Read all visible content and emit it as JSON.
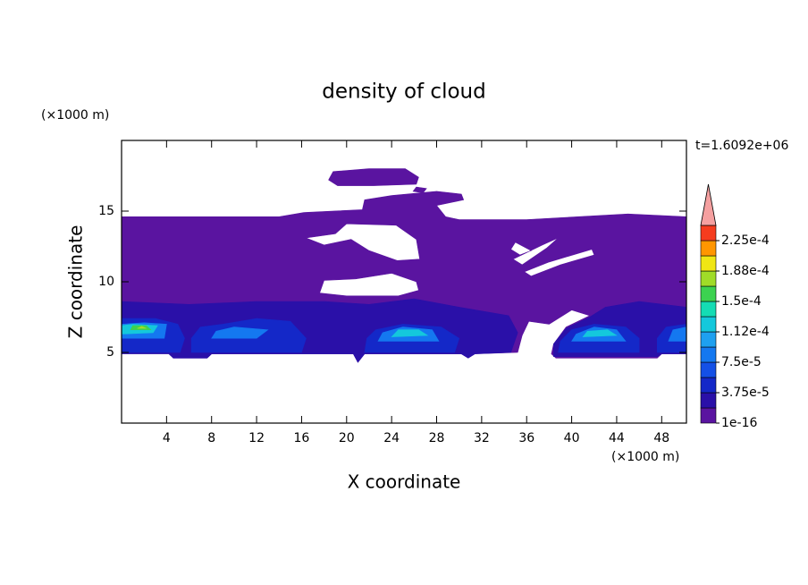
{
  "chart_data": {
    "type": "contour",
    "title": "density of cloud",
    "x_label": "X coordinate",
    "y_label": "Z coordinate",
    "x_unit": "(×1000 m)",
    "y_unit": "(×1000 m)",
    "annotation": "t=1.6092e+06",
    "xlim": [
      0,
      50.2
    ],
    "ylim": [
      0,
      20
    ],
    "xticks": [
      4,
      8,
      12,
      16,
      20,
      24,
      28,
      32,
      36,
      40,
      44,
      48
    ],
    "yticks": [
      5,
      10,
      15
    ],
    "colorbar": {
      "levels": [
        1e-16,
        1.875e-05,
        3.75e-05,
        5.625e-05,
        7.5e-05,
        9.375e-05,
        0.0001125,
        0.00013125,
        0.00015,
        0.00016875,
        0.0001875,
        0.00020625,
        0.000225
      ],
      "colors": [
        "#5a14a0",
        "#2a10a8",
        "#1428c8",
        "#1450e6",
        "#1478f0",
        "#1ea0f0",
        "#14c8dc",
        "#14dcb4",
        "#3cd250",
        "#a0dc28",
        "#f0e614",
        "#ff9600",
        "#f53c1e"
      ],
      "extend_color": "#f5a0a0",
      "ticks": [
        {
          "value": 1e-16,
          "label": "1e-16"
        },
        {
          "value": 3.75e-05,
          "label": "3.75e-5"
        },
        {
          "value": 7.5e-05,
          "label": "7.5e-5"
        },
        {
          "value": 0.0001125,
          "label": "1.12e-4"
        },
        {
          "value": 0.00015,
          "label": "1.5e-4"
        },
        {
          "value": 0.0001875,
          "label": "1.88e-4"
        },
        {
          "value": 0.000225,
          "label": "2.25e-4"
        }
      ]
    },
    "regions": [
      {
        "level": 1e-16,
        "rings": [
          [
            [
              0,
              5.0
            ],
            [
              4.2,
              5.0
            ],
            [
              4.6,
              4.6
            ],
            [
              7.6,
              4.6
            ],
            [
              8,
              4.9
            ],
            [
              20.6,
              4.9
            ],
            [
              21,
              4.3
            ],
            [
              21.6,
              4.9
            ],
            [
              30.2,
              4.9
            ],
            [
              30.8,
              4.6
            ],
            [
              31.4,
              4.9
            ],
            [
              35.2,
              5.0
            ],
            [
              35.6,
              6.2
            ],
            [
              36.2,
              7.2
            ],
            [
              38,
              7.0
            ],
            [
              40,
              8.0
            ],
            [
              41.6,
              7.6
            ],
            [
              39.5,
              6.8
            ],
            [
              38.4,
              5.6
            ],
            [
              38.2,
              4.9
            ],
            [
              38.6,
              4.6
            ],
            [
              47.6,
              4.6
            ],
            [
              48,
              4.9
            ],
            [
              50.2,
              4.9
            ],
            [
              50.2,
              14.6
            ],
            [
              45,
              14.8
            ],
            [
              36,
              14.4
            ],
            [
              30,
              14.4
            ],
            [
              28.8,
              14.6
            ],
            [
              28,
              15.4
            ],
            [
              30.4,
              15.8
            ],
            [
              30.2,
              16.2
            ],
            [
              28,
              16.4
            ],
            [
              24,
              16.1
            ],
            [
              21.6,
              15.8
            ],
            [
              21.4,
              15.1
            ],
            [
              16.2,
              14.9
            ],
            [
              14,
              14.6
            ],
            [
              0,
              14.6
            ]
          ],
          [
            [
              16.4,
              13.1
            ],
            [
              19,
              13.4
            ],
            [
              20,
              14.1
            ],
            [
              24.4,
              14.0
            ],
            [
              26.2,
              13.0
            ],
            [
              26.5,
              11.6
            ],
            [
              24.5,
              11.5
            ],
            [
              22,
              12.2
            ],
            [
              20.4,
              13.0
            ],
            [
              18,
              12.6
            ]
          ],
          [
            [
              17.6,
              9.2
            ],
            [
              18,
              10.1
            ],
            [
              20.8,
              10.2
            ],
            [
              24,
              10.6
            ],
            [
              26.2,
              10.0
            ],
            [
              26.4,
              9.4
            ],
            [
              24.6,
              9.0
            ],
            [
              20,
              9.0
            ]
          ],
          [
            [
              34.8,
              11.6
            ],
            [
              37.4,
              12.6
            ],
            [
              38.8,
              13.1
            ],
            [
              37.8,
              12.4
            ],
            [
              35.6,
              11.2
            ]
          ],
          [
            [
              35.8,
              10.7
            ],
            [
              38,
              11.4
            ],
            [
              41.8,
              12.3
            ],
            [
              42,
              11.9
            ],
            [
              39,
              11.2
            ],
            [
              36.4,
              10.4
            ]
          ],
          [
            [
              34.6,
              12.3
            ],
            [
              35,
              12.8
            ],
            [
              36.4,
              12.2
            ],
            [
              35.4,
              11.9
            ]
          ]
        ]
      },
      {
        "level": 1e-16,
        "rings": [
          [
            [
              18.4,
              17.2
            ],
            [
              18.8,
              17.8
            ],
            [
              22,
              18.0
            ],
            [
              25.2,
              18.0
            ],
            [
              26.4,
              17.4
            ],
            [
              26.2,
              16.9
            ],
            [
              22.4,
              16.8
            ],
            [
              19.2,
              16.8
            ]
          ]
        ]
      },
      {
        "level": 1e-16,
        "rings": [
          [
            [
              25.9,
              16.4
            ],
            [
              26.2,
              16.7
            ],
            [
              27.1,
              16.6
            ],
            [
              26.8,
              16.3
            ]
          ]
        ]
      },
      {
        "level": 1.875e-05,
        "rings": [
          [
            [
              0,
              4.9
            ],
            [
              4.2,
              4.9
            ],
            [
              4.6,
              4.6
            ],
            [
              7.6,
              4.6
            ],
            [
              8,
              4.9
            ],
            [
              20.6,
              4.9
            ],
            [
              21,
              4.3
            ],
            [
              21.6,
              4.9
            ],
            [
              30.2,
              4.9
            ],
            [
              30.8,
              4.6
            ],
            [
              31.4,
              4.9
            ],
            [
              34.6,
              5.0
            ],
            [
              35.2,
              6.4
            ],
            [
              34.4,
              7.6
            ],
            [
              30,
              8.2
            ],
            [
              26,
              8.8
            ],
            [
              22,
              8.4
            ],
            [
              18,
              8.6
            ],
            [
              12,
              8.6
            ],
            [
              6,
              8.4
            ],
            [
              0,
              8.6
            ]
          ]
        ]
      },
      {
        "level": 1.875e-05,
        "rings": [
          [
            [
              38.4,
              4.7
            ],
            [
              47.6,
              4.7
            ],
            [
              48,
              4.9
            ],
            [
              50.2,
              4.9
            ],
            [
              50.2,
              8.2
            ],
            [
              46,
              8.6
            ],
            [
              43,
              8.2
            ],
            [
              41.6,
              7.5
            ],
            [
              39.5,
              6.7
            ],
            [
              38.4,
              5.6
            ]
          ]
        ]
      },
      {
        "level": 3.75e-05,
        "rings": [
          [
            [
              0,
              5.0
            ],
            [
              5.2,
              5.0
            ],
            [
              5.6,
              6.0
            ],
            [
              5,
              7.0
            ],
            [
              3,
              7.4
            ],
            [
              0,
              7.4
            ]
          ]
        ]
      },
      {
        "level": 3.75e-05,
        "rings": [
          [
            [
              6.2,
              5.0
            ],
            [
              16,
              5.0
            ],
            [
              16.4,
              6.0
            ],
            [
              15,
              7.2
            ],
            [
              12,
              7.4
            ],
            [
              9,
              7.0
            ],
            [
              7,
              6.8
            ],
            [
              6.2,
              6.0
            ]
          ]
        ]
      },
      {
        "level": 3.75e-05,
        "rings": [
          [
            [
              21.6,
              5.0
            ],
            [
              29.6,
              5.0
            ],
            [
              30,
              6.0
            ],
            [
              28.4,
              6.8
            ],
            [
              25,
              7.0
            ],
            [
              22.6,
              6.6
            ],
            [
              21.8,
              6.0
            ]
          ]
        ]
      },
      {
        "level": 3.75e-05,
        "rings": [
          [
            [
              38.8,
              5.0
            ],
            [
              46,
              5.0
            ],
            [
              46,
              6.0
            ],
            [
              44.8,
              6.8
            ],
            [
              42,
              7.0
            ],
            [
              40,
              6.6
            ],
            [
              39,
              5.8
            ]
          ]
        ]
      },
      {
        "level": 3.75e-05,
        "rings": [
          [
            [
              47.6,
              5.0
            ],
            [
              50.2,
              5.0
            ],
            [
              50.2,
              7.0
            ],
            [
              48.4,
              6.8
            ],
            [
              47.6,
              6.0
            ]
          ]
        ]
      },
      {
        "level": 7.5e-05,
        "rings": [
          [
            [
              0,
              6.0
            ],
            [
              3.8,
              6.0
            ],
            [
              4,
              7.0
            ],
            [
              2,
              7.1
            ],
            [
              0,
              7.0
            ]
          ]
        ]
      },
      {
        "level": 7.5e-05,
        "rings": [
          [
            [
              22.8,
              5.8
            ],
            [
              28.2,
              5.8
            ],
            [
              27.6,
              6.6
            ],
            [
              25,
              6.8
            ],
            [
              23.2,
              6.4
            ]
          ]
        ]
      },
      {
        "level": 7.5e-05,
        "rings": [
          [
            [
              40,
              5.8
            ],
            [
              44.8,
              5.8
            ],
            [
              44,
              6.6
            ],
            [
              42,
              6.8
            ],
            [
              40.4,
              6.3
            ]
          ]
        ]
      },
      {
        "level": 7.5e-05,
        "rings": [
          [
            [
              8,
              6.0
            ],
            [
              12,
              6.0
            ],
            [
              13,
              6.6
            ],
            [
              10,
              6.8
            ],
            [
              8.4,
              6.5
            ]
          ]
        ]
      },
      {
        "level": 7.5e-05,
        "rings": [
          [
            [
              48.6,
              5.8
            ],
            [
              50.2,
              5.8
            ],
            [
              50.2,
              6.8
            ],
            [
              49,
              6.6
            ]
          ]
        ]
      },
      {
        "level": 0.0001125,
        "rings": [
          [
            [
              0,
              6.3
            ],
            [
              2.8,
              6.4
            ],
            [
              3.2,
              6.9
            ],
            [
              1,
              7.0
            ],
            [
              0,
              6.9
            ]
          ]
        ]
      },
      {
        "level": 0.0001125,
        "rings": [
          [
            [
              24,
              6.1
            ],
            [
              27.2,
              6.2
            ],
            [
              26.4,
              6.6
            ],
            [
              24.6,
              6.6
            ]
          ]
        ]
      },
      {
        "level": 0.0001125,
        "rings": [
          [
            [
              41,
              6.1
            ],
            [
              44,
              6.2
            ],
            [
              43.2,
              6.6
            ],
            [
              41.4,
              6.5
            ]
          ]
        ]
      },
      {
        "level": 0.00015,
        "rings": [
          [
            [
              0.8,
              6.6
            ],
            [
              2.6,
              6.6
            ],
            [
              2.2,
              6.9
            ],
            [
              1,
              6.9
            ]
          ]
        ]
      },
      {
        "level": 0.00016875,
        "rings": [
          [
            [
              1.4,
              6.7
            ],
            [
              2.2,
              6.7
            ],
            [
              1.8,
              6.85
            ]
          ]
        ]
      }
    ]
  }
}
